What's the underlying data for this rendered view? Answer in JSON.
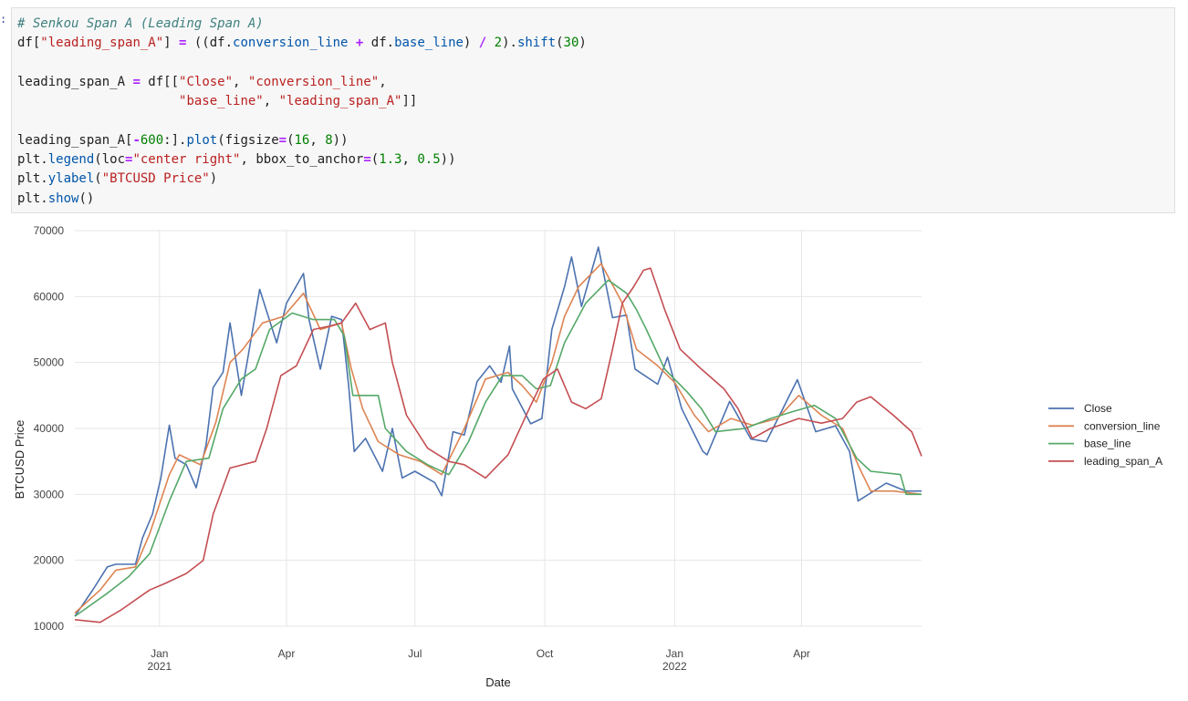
{
  "prompt": ":",
  "code_lines": [
    [
      {
        "t": "# Senkou Span A (Leading Span A)",
        "c": "cm"
      }
    ],
    [
      {
        "t": "df["
      },
      {
        "t": "\"leading_span_A\"",
        "c": "st"
      },
      {
        "t": "] "
      },
      {
        "t": "=",
        "c": "op"
      },
      {
        "t": " ((df."
      },
      {
        "t": "conversion_line",
        "c": "fn"
      },
      {
        "t": " "
      },
      {
        "t": "+",
        "c": "op"
      },
      {
        "t": " df."
      },
      {
        "t": "base_line",
        "c": "fn"
      },
      {
        "t": ") "
      },
      {
        "t": "/",
        "c": "op"
      },
      {
        "t": " "
      },
      {
        "t": "2",
        "c": "nu"
      },
      {
        "t": ")."
      },
      {
        "t": "shift",
        "c": "fn"
      },
      {
        "t": "("
      },
      {
        "t": "30",
        "c": "nu"
      },
      {
        "t": ")"
      }
    ],
    [],
    [
      {
        "t": "leading_span_A "
      },
      {
        "t": "=",
        "c": "op"
      },
      {
        "t": " df[["
      },
      {
        "t": "\"Close\"",
        "c": "st"
      },
      {
        "t": ", "
      },
      {
        "t": "\"conversion_line\"",
        "c": "st"
      },
      {
        "t": ","
      }
    ],
    [
      {
        "t": "                     "
      },
      {
        "t": "\"base_line\"",
        "c": "st"
      },
      {
        "t": ", "
      },
      {
        "t": "\"leading_span_A\"",
        "c": "st"
      },
      {
        "t": "]]"
      }
    ],
    [],
    [
      {
        "t": "leading_span_A["
      },
      {
        "t": "-",
        "c": "op"
      },
      {
        "t": "600",
        "c": "nu"
      },
      {
        "t": ":]."
      },
      {
        "t": "plot",
        "c": "fn"
      },
      {
        "t": "(figsize"
      },
      {
        "t": "=",
        "c": "op"
      },
      {
        "t": "("
      },
      {
        "t": "16",
        "c": "nu"
      },
      {
        "t": ", "
      },
      {
        "t": "8",
        "c": "nu"
      },
      {
        "t": "))"
      }
    ],
    [
      {
        "t": "plt."
      },
      {
        "t": "legend",
        "c": "fn"
      },
      {
        "t": "(loc"
      },
      {
        "t": "=",
        "c": "op"
      },
      {
        "t": "\"center right\"",
        "c": "st"
      },
      {
        "t": ", bbox_to_anchor"
      },
      {
        "t": "=",
        "c": "op"
      },
      {
        "t": "("
      },
      {
        "t": "1.3",
        "c": "nu"
      },
      {
        "t": ", "
      },
      {
        "t": "0.5",
        "c": "nu"
      },
      {
        "t": "))"
      }
    ],
    [
      {
        "t": "plt."
      },
      {
        "t": "ylabel",
        "c": "fn"
      },
      {
        "t": "("
      },
      {
        "t": "\"BTCUSD Price\"",
        "c": "st"
      },
      {
        "t": ")"
      }
    ],
    [
      {
        "t": "plt."
      },
      {
        "t": "show",
        "c": "fn"
      },
      {
        "t": "()"
      }
    ]
  ],
  "chart_data": {
    "type": "line",
    "xlabel": "Date",
    "ylabel": "BTCUSD Price",
    "x_range": [
      "2020-11-02",
      "2022-06-25"
    ],
    "ylim": [
      10000,
      70000
    ],
    "y_ticks": [
      10000,
      20000,
      30000,
      40000,
      50000,
      60000,
      70000
    ],
    "x_ticks": [
      {
        "date": "2021-01-01",
        "label": "Jan",
        "sublabel": "2021"
      },
      {
        "date": "2021-04-01",
        "label": "Apr",
        "sublabel": ""
      },
      {
        "date": "2021-07-01",
        "label": "Jul",
        "sublabel": ""
      },
      {
        "date": "2021-10-01",
        "label": "Oct",
        "sublabel": ""
      },
      {
        "date": "2022-01-01",
        "label": "Jan",
        "sublabel": "2022"
      },
      {
        "date": "2022-04-01",
        "label": "Apr",
        "sublabel": ""
      }
    ],
    "grid": true,
    "legend_placement": "center-right, outside",
    "series": [
      {
        "name": "Close",
        "color": "#4c72b0",
        "points": [
          [
            "2020-11-02",
            11500
          ],
          [
            "2020-11-15",
            15600
          ],
          [
            "2020-11-25",
            19000
          ],
          [
            "2020-12-01",
            19400
          ],
          [
            "2020-12-15",
            19400
          ],
          [
            "2020-12-20",
            23400
          ],
          [
            "2020-12-27",
            27000
          ],
          [
            "2021-01-02",
            32500
          ],
          [
            "2021-01-08",
            40500
          ],
          [
            "2021-01-12",
            35500
          ],
          [
            "2021-01-20",
            34500
          ],
          [
            "2021-01-27",
            31000
          ],
          [
            "2021-02-03",
            37500
          ],
          [
            "2021-02-08",
            46200
          ],
          [
            "2021-02-15",
            48500
          ],
          [
            "2021-02-20",
            56000
          ],
          [
            "2021-02-28",
            45000
          ],
          [
            "2021-03-13",
            61100
          ],
          [
            "2021-03-25",
            53000
          ],
          [
            "2021-04-01",
            59000
          ],
          [
            "2021-04-13",
            63500
          ],
          [
            "2021-04-17",
            56500
          ],
          [
            "2021-04-25",
            49000
          ],
          [
            "2021-05-03",
            57000
          ],
          [
            "2021-05-10",
            56500
          ],
          [
            "2021-05-15",
            46500
          ],
          [
            "2021-05-19",
            36500
          ],
          [
            "2021-05-27",
            38500
          ],
          [
            "2021-06-08",
            33500
          ],
          [
            "2021-06-15",
            40000
          ],
          [
            "2021-06-22",
            32500
          ],
          [
            "2021-07-01",
            33500
          ],
          [
            "2021-07-15",
            31800
          ],
          [
            "2021-07-20",
            29800
          ],
          [
            "2021-07-28",
            39500
          ],
          [
            "2021-08-05",
            39000
          ],
          [
            "2021-08-14",
            47100
          ],
          [
            "2021-08-23",
            49500
          ],
          [
            "2021-08-31",
            47000
          ],
          [
            "2021-09-06",
            52500
          ],
          [
            "2021-09-08",
            46000
          ],
          [
            "2021-09-21",
            40700
          ],
          [
            "2021-09-29",
            41500
          ],
          [
            "2021-10-06",
            55000
          ],
          [
            "2021-10-15",
            61500
          ],
          [
            "2021-10-20",
            66000
          ],
          [
            "2021-10-27",
            58500
          ],
          [
            "2021-11-08",
            67500
          ],
          [
            "2021-11-18",
            56800
          ],
          [
            "2021-11-28",
            57200
          ],
          [
            "2021-12-04",
            49000
          ],
          [
            "2021-12-20",
            46700
          ],
          [
            "2021-12-27",
            50800
          ],
          [
            "2022-01-06",
            43000
          ],
          [
            "2022-01-21",
            36500
          ],
          [
            "2022-01-24",
            36000
          ],
          [
            "2022-02-09",
            44100
          ],
          [
            "2022-02-24",
            38400
          ],
          [
            "2022-03-07",
            38000
          ],
          [
            "2022-03-29",
            47400
          ],
          [
            "2022-04-11",
            39500
          ],
          [
            "2022-04-25",
            40400
          ],
          [
            "2022-05-05",
            36500
          ],
          [
            "2022-05-11",
            29000
          ],
          [
            "2022-05-31",
            31700
          ],
          [
            "2022-06-14",
            30500
          ],
          [
            "2022-06-25",
            30500
          ]
        ]
      },
      {
        "name": "conversion_line",
        "color": "#dd8452",
        "points": [
          [
            "2020-11-02",
            12000
          ],
          [
            "2020-11-20",
            15500
          ],
          [
            "2020-12-01",
            18500
          ],
          [
            "2020-12-15",
            19000
          ],
          [
            "2020-12-25",
            24000
          ],
          [
            "2021-01-08",
            33000
          ],
          [
            "2021-01-15",
            36000
          ],
          [
            "2021-01-30",
            34500
          ],
          [
            "2021-02-10",
            41000
          ],
          [
            "2021-02-20",
            50000
          ],
          [
            "2021-03-01",
            52000
          ],
          [
            "2021-03-15",
            56000
          ],
          [
            "2021-03-30",
            57000
          ],
          [
            "2021-04-13",
            60500
          ],
          [
            "2021-04-25",
            55000
          ],
          [
            "2021-05-10",
            56000
          ],
          [
            "2021-05-17",
            49000
          ],
          [
            "2021-05-25",
            43000
          ],
          [
            "2021-06-05",
            38000
          ],
          [
            "2021-06-20",
            36000
          ],
          [
            "2021-07-05",
            35000
          ],
          [
            "2021-07-20",
            33000
          ],
          [
            "2021-08-05",
            40000
          ],
          [
            "2021-08-20",
            47500
          ],
          [
            "2021-09-05",
            48500
          ],
          [
            "2021-09-15",
            46500
          ],
          [
            "2021-09-25",
            44000
          ],
          [
            "2021-10-06",
            50000
          ],
          [
            "2021-10-15",
            57000
          ],
          [
            "2021-10-25",
            61500
          ],
          [
            "2021-11-10",
            65000
          ],
          [
            "2021-11-25",
            59000
          ],
          [
            "2021-12-05",
            52000
          ],
          [
            "2021-12-20",
            49500
          ],
          [
            "2022-01-01",
            47000
          ],
          [
            "2022-01-15",
            42000
          ],
          [
            "2022-01-25",
            39500
          ],
          [
            "2022-02-10",
            41500
          ],
          [
            "2022-02-25",
            40500
          ],
          [
            "2022-03-15",
            41500
          ],
          [
            "2022-03-30",
            45000
          ],
          [
            "2022-04-15",
            42000
          ],
          [
            "2022-04-30",
            40000
          ],
          [
            "2022-05-12",
            34000
          ],
          [
            "2022-05-20",
            30500
          ],
          [
            "2022-06-05",
            30500
          ],
          [
            "2022-06-25",
            30000
          ]
        ]
      },
      {
        "name": "base_line",
        "color": "#55a868",
        "points": [
          [
            "2020-11-02",
            11500
          ],
          [
            "2020-11-25",
            15000
          ],
          [
            "2020-12-10",
            17500
          ],
          [
            "2020-12-25",
            21000
          ],
          [
            "2021-01-08",
            29000
          ],
          [
            "2021-01-20",
            35000
          ],
          [
            "2021-02-05",
            35500
          ],
          [
            "2021-02-15",
            43000
          ],
          [
            "2021-02-28",
            47500
          ],
          [
            "2021-03-10",
            49000
          ],
          [
            "2021-03-20",
            55000
          ],
          [
            "2021-04-05",
            57500
          ],
          [
            "2021-04-20",
            56500
          ],
          [
            "2021-05-05",
            56500
          ],
          [
            "2021-05-12",
            54000
          ],
          [
            "2021-05-18",
            45000
          ],
          [
            "2021-06-05",
            45000
          ],
          [
            "2021-06-10",
            40000
          ],
          [
            "2021-06-25",
            36500
          ],
          [
            "2021-07-10",
            34500
          ],
          [
            "2021-07-25",
            33000
          ],
          [
            "2021-08-08",
            38000
          ],
          [
            "2021-08-20",
            44000
          ],
          [
            "2021-09-01",
            48000
          ],
          [
            "2021-09-15",
            48000
          ],
          [
            "2021-09-25",
            46000
          ],
          [
            "2021-10-05",
            46500
          ],
          [
            "2021-10-15",
            53000
          ],
          [
            "2021-10-30",
            59000
          ],
          [
            "2021-11-15",
            62500
          ],
          [
            "2021-11-28",
            60500
          ],
          [
            "2021-12-05",
            58000
          ],
          [
            "2021-12-12",
            55000
          ],
          [
            "2021-12-25",
            49000
          ],
          [
            "2022-01-10",
            45500
          ],
          [
            "2022-01-20",
            43000
          ],
          [
            "2022-01-30",
            39500
          ],
          [
            "2022-02-20",
            40000
          ],
          [
            "2022-03-10",
            41500
          ],
          [
            "2022-03-25",
            42500
          ],
          [
            "2022-04-10",
            43500
          ],
          [
            "2022-04-25",
            41500
          ],
          [
            "2022-05-10",
            35500
          ],
          [
            "2022-05-20",
            33500
          ],
          [
            "2022-06-10",
            33000
          ],
          [
            "2022-06-14",
            30000
          ],
          [
            "2022-06-25",
            30000
          ]
        ]
      },
      {
        "name": "leading_span_A",
        "color": "#c44e52",
        "points": [
          [
            "2020-11-02",
            11000
          ],
          [
            "2020-11-20",
            10600
          ],
          [
            "2020-12-05",
            12500
          ],
          [
            "2020-12-25",
            15500
          ],
          [
            "2021-01-05",
            16500
          ],
          [
            "2021-01-20",
            18000
          ],
          [
            "2021-02-01",
            20000
          ],
          [
            "2021-02-08",
            27000
          ],
          [
            "2021-02-20",
            34000
          ],
          [
            "2021-03-10",
            35000
          ],
          [
            "2021-03-18",
            40000
          ],
          [
            "2021-03-28",
            48000
          ],
          [
            "2021-04-08",
            49500
          ],
          [
            "2021-04-20",
            55000
          ],
          [
            "2021-05-01",
            55500
          ],
          [
            "2021-05-10",
            56000
          ],
          [
            "2021-05-20",
            59000
          ],
          [
            "2021-05-30",
            55000
          ],
          [
            "2021-06-10",
            56000
          ],
          [
            "2021-06-15",
            50000
          ],
          [
            "2021-06-25",
            42000
          ],
          [
            "2021-07-10",
            37000
          ],
          [
            "2021-07-25",
            35000
          ],
          [
            "2021-08-05",
            34500
          ],
          [
            "2021-08-20",
            32500
          ],
          [
            "2021-09-05",
            36000
          ],
          [
            "2021-09-20",
            43000
          ],
          [
            "2021-09-30",
            47500
          ],
          [
            "2021-10-10",
            49000
          ],
          [
            "2021-10-20",
            44000
          ],
          [
            "2021-10-30",
            43000
          ],
          [
            "2021-11-10",
            44500
          ],
          [
            "2021-11-18",
            52000
          ],
          [
            "2021-11-25",
            59000
          ],
          [
            "2021-12-03",
            61500
          ],
          [
            "2021-12-10",
            64000
          ],
          [
            "2021-12-15",
            64300
          ],
          [
            "2021-12-25",
            58000
          ],
          [
            "2022-01-05",
            52000
          ],
          [
            "2022-01-20",
            49000
          ],
          [
            "2022-02-05",
            46000
          ],
          [
            "2022-02-15",
            43000
          ],
          [
            "2022-02-25",
            38500
          ],
          [
            "2022-03-10",
            40000
          ],
          [
            "2022-03-30",
            41500
          ],
          [
            "2022-04-15",
            40800
          ],
          [
            "2022-04-30",
            41500
          ],
          [
            "2022-05-10",
            44000
          ],
          [
            "2022-05-20",
            44800
          ],
          [
            "2022-06-05",
            42000
          ],
          [
            "2022-06-18",
            39500
          ],
          [
            "2022-06-25",
            35800
          ]
        ]
      }
    ]
  }
}
